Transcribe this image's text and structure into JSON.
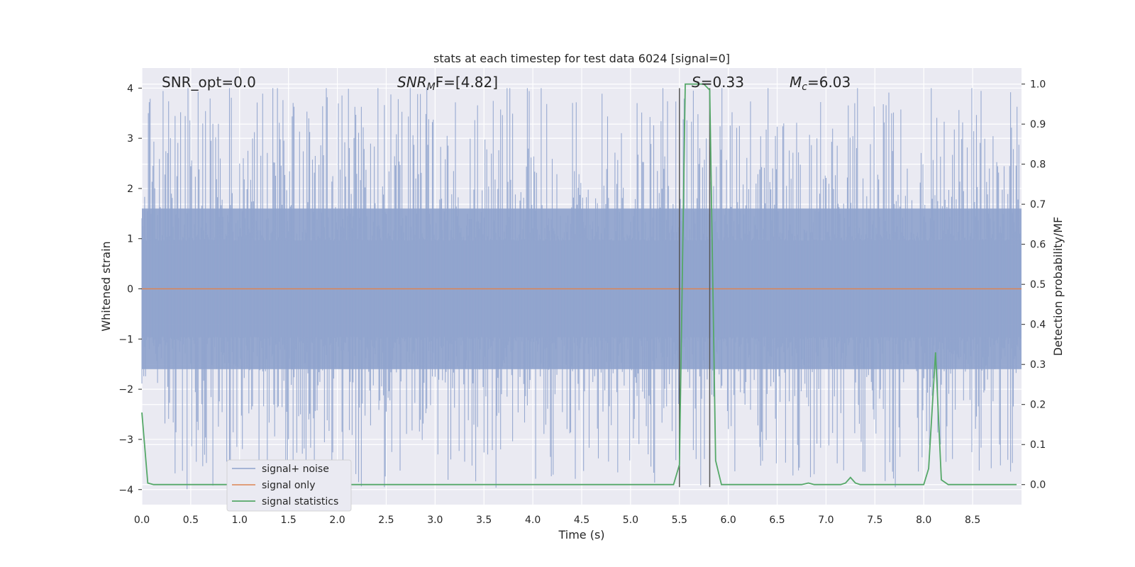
{
  "chart_data": {
    "type": "line",
    "title": "stats at each timestep for test data 6024 [signal=0]",
    "xlabel": "Time (s)",
    "ylabel": "Whitened strain",
    "ylabel_right": "Detection probability/MF",
    "xlim": [
      0.0,
      9.0
    ],
    "ylim": [
      -4.3,
      4.4
    ],
    "ylim_right": [
      -0.05,
      1.04
    ],
    "x_ticks": [
      "0.0",
      "0.5",
      "1.0",
      "1.5",
      "2.0",
      "2.5",
      "3.0",
      "3.5",
      "4.0",
      "4.5",
      "5.0",
      "5.5",
      "6.0",
      "6.5",
      "7.0",
      "7.5",
      "8.0",
      "8.5"
    ],
    "y_ticks": [
      "−4",
      "−3",
      "−2",
      "−1",
      "0",
      "1",
      "2",
      "3",
      "4"
    ],
    "y_ticks_right": [
      "0.0",
      "0.1",
      "0.2",
      "0.3",
      "0.4",
      "0.5",
      "0.6",
      "0.7",
      "0.8",
      "0.9",
      "1.0"
    ],
    "grid": true,
    "legend_position": "lower-left",
    "annotations": {
      "snr_opt": "SNR_opt=0.0",
      "snr_mf_base": "SNR",
      "snr_mf_sub": "M",
      "snr_mf_rest": "F=[4.82]",
      "s_italic": "S",
      "s_rest": "=0.33",
      "mc_base": "M",
      "mc_sub": "c",
      "mc_rest": "=6.03"
    },
    "vertical_lines": [
      5.5,
      5.81
    ],
    "series": [
      {
        "name": "signal+ noise",
        "color": "#8fa3cd",
        "style": "noise",
        "envelope": 1.6,
        "peak_max": 4.0
      },
      {
        "name": "signal only",
        "color": "#dd8452",
        "values_constant": 0.0
      },
      {
        "name": "signal statistics",
        "color": "#55a868",
        "axis": "right",
        "x": [
          0.0,
          0.06,
          0.12,
          0.2,
          5.44,
          5.5,
          5.56,
          5.62,
          5.75,
          5.81,
          5.87,
          5.93,
          6.0,
          6.75,
          6.82,
          6.88,
          7.15,
          7.2,
          7.25,
          7.3,
          7.35,
          8.0,
          8.05,
          8.12,
          8.18,
          8.25,
          8.95
        ],
        "y": [
          0.18,
          0.004,
          0.0,
          0.0,
          0.0,
          0.05,
          1.0,
          1.0,
          1.0,
          0.985,
          0.06,
          0.0,
          0.0,
          0.0,
          0.004,
          0.0,
          0.0,
          0.004,
          0.018,
          0.004,
          0.0,
          0.0,
          0.04,
          0.33,
          0.012,
          0.0,
          0.0
        ]
      }
    ]
  }
}
